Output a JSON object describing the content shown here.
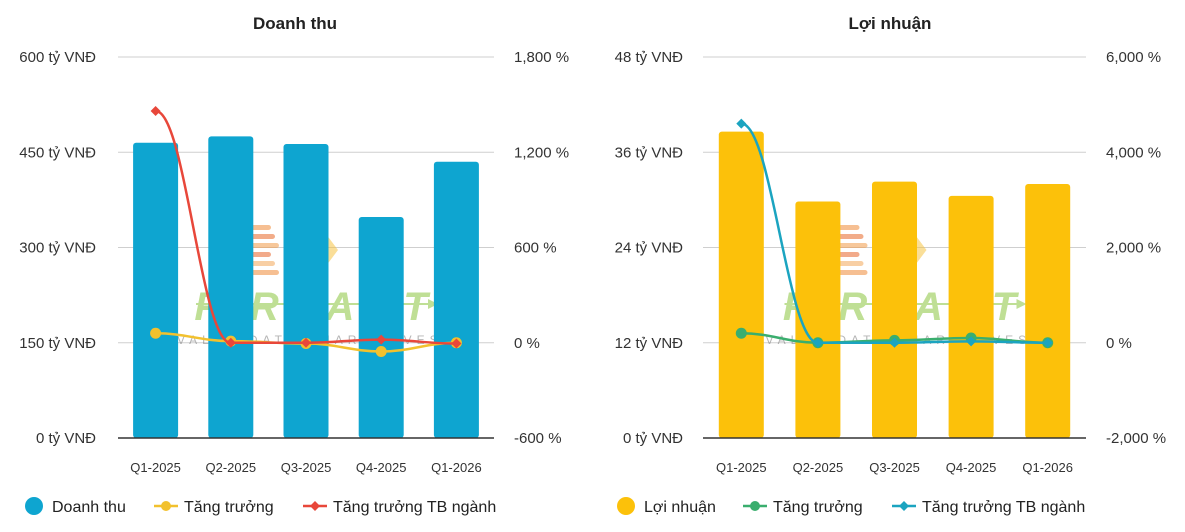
{
  "watermark": {
    "brand": "FIREANT",
    "tagline": "VALUE DATA SMART INVEST"
  },
  "chart_data": [
    {
      "type": "bar",
      "title": "Doanh thu",
      "categories": [
        "Q1-2025",
        "Q2-2025",
        "Q3-2025",
        "Q4-2025",
        "Q1-2026"
      ],
      "left_axis": {
        "ylim": [
          0,
          600
        ],
        "ticks": [
          "0 tỷ VNĐ",
          "150 tỷ VNĐ",
          "300 tỷ VNĐ",
          "450 tỷ VNĐ",
          "600 tỷ VNĐ"
        ]
      },
      "right_axis": {
        "ylim": [
          -600,
          1800
        ],
        "ticks": [
          "-600 %",
          "0 %",
          "600 %",
          "1,200 %",
          "1,800 %"
        ]
      },
      "bar_color": "#0ea5d0",
      "series": [
        {
          "name": "Doanh thu",
          "kind": "bar",
          "axis": "left",
          "color": "#0ea5d0",
          "values": [
            465,
            475,
            463,
            348,
            435
          ]
        },
        {
          "name": "Tăng trưởng",
          "kind": "line",
          "axis": "right",
          "color": "#f2c12e",
          "values": [
            60,
            10,
            -5,
            -55,
            0
          ]
        },
        {
          "name": "Tăng trưởng TB ngành",
          "kind": "line",
          "axis": "right",
          "color": "#e8473a",
          "values": [
            1460,
            0,
            0,
            20,
            -5
          ]
        }
      ],
      "legend_position": "bottom"
    },
    {
      "type": "bar",
      "title": "Lợi nhuận",
      "categories": [
        "Q1-2025",
        "Q2-2025",
        "Q3-2025",
        "Q4-2025",
        "Q1-2026"
      ],
      "left_axis": {
        "ylim": [
          0,
          48
        ],
        "ticks": [
          "0 tỷ VNĐ",
          "12 tỷ VNĐ",
          "24 tỷ VNĐ",
          "36 tỷ VNĐ",
          "48 tỷ VNĐ"
        ]
      },
      "right_axis": {
        "ylim": [
          -2000,
          6000
        ],
        "ticks": [
          "-2,000 %",
          "0 %",
          "2,000 %",
          "4,000 %",
          "6,000 %"
        ]
      },
      "series": [
        {
          "name": "Lợi nhuận",
          "kind": "bar",
          "axis": "left",
          "color": "#fcc10a",
          "values": [
            38.6,
            29.8,
            32.3,
            30.5,
            32.0
          ]
        },
        {
          "name": "Tăng trưởng",
          "kind": "line",
          "axis": "right",
          "color": "#3aae6e",
          "values": [
            200,
            0,
            50,
            100,
            0
          ]
        },
        {
          "name": "Tăng trưởng TB ngành",
          "kind": "line",
          "axis": "right",
          "color": "#1ba4c0",
          "values": [
            4600,
            0,
            0,
            30,
            0
          ]
        }
      ],
      "legend_position": "bottom"
    }
  ]
}
